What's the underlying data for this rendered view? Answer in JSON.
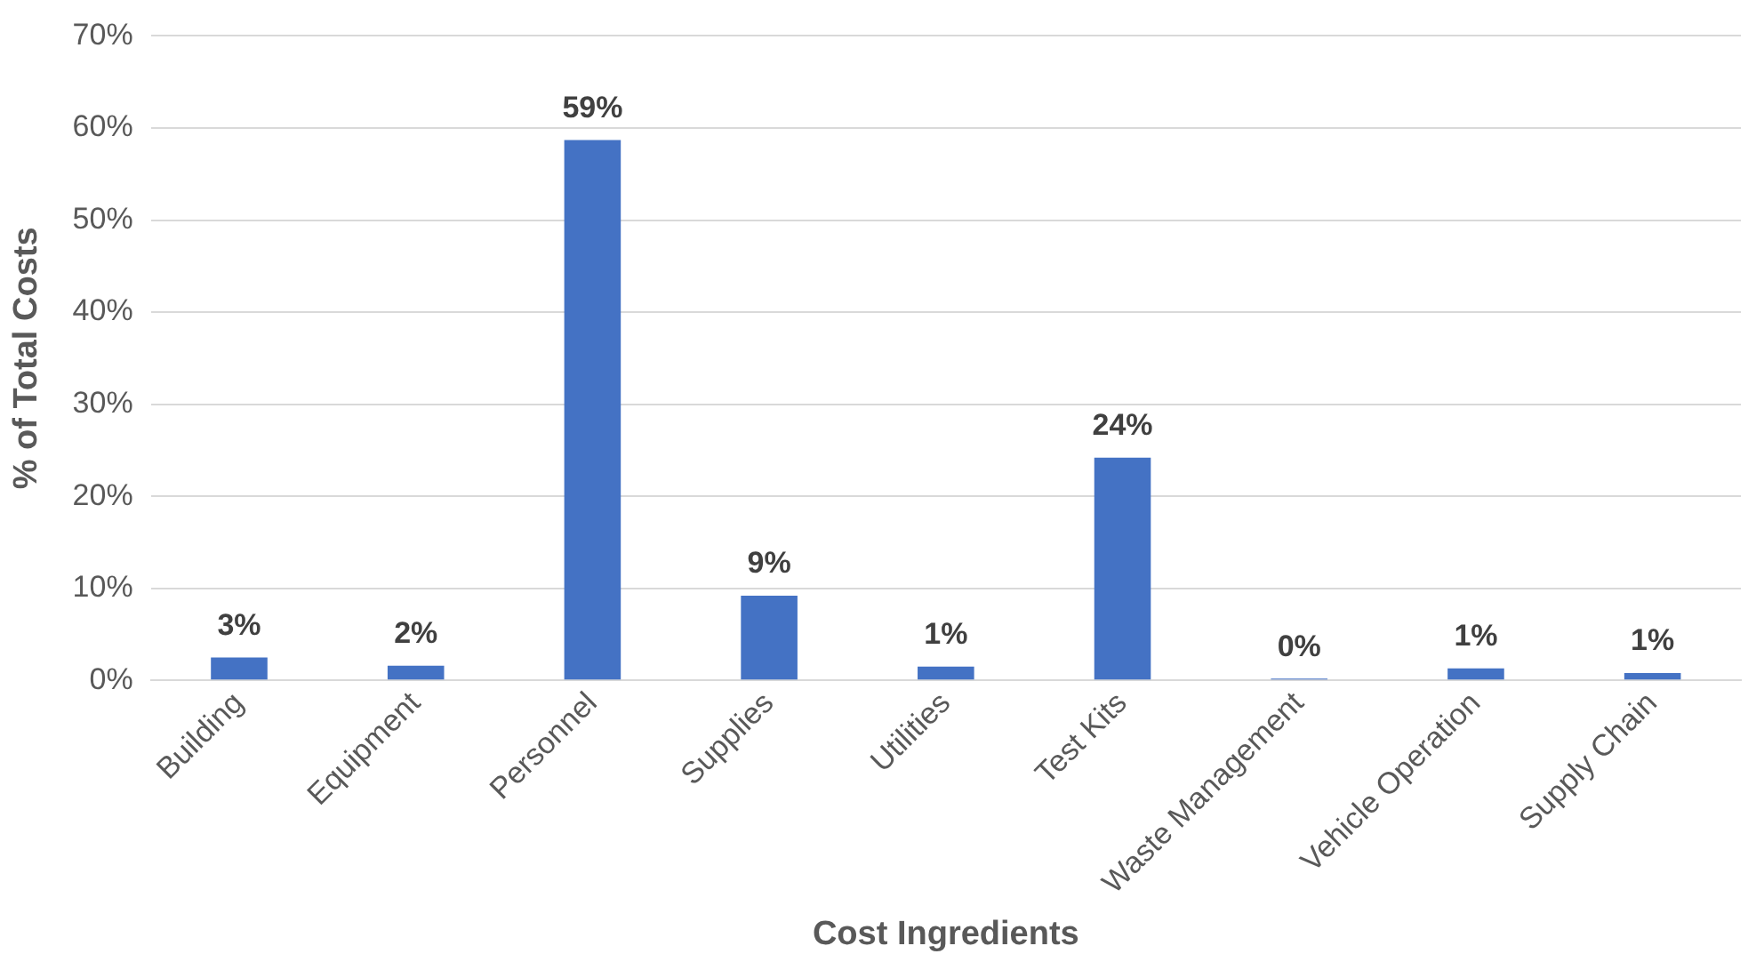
{
  "chart_data": {
    "type": "bar",
    "xlabel": "Cost Ingredients",
    "ylabel": "% of Total Costs",
    "categories": [
      "Building",
      "Equipment",
      "Personnel",
      "Supplies",
      "Utilities",
      "Test Kits",
      "Waste Management",
      "Vehicle Operation",
      "Supply Chain"
    ],
    "values": [
      2.5,
      1.6,
      58.7,
      9.2,
      1.5,
      24.2,
      0.2,
      1.3,
      0.8
    ],
    "value_labels": [
      "3%",
      "2%",
      "59%",
      "9%",
      "1%",
      "24%",
      "0%",
      "1%",
      "1%"
    ],
    "color": "#4472c4",
    "ylim": [
      0,
      70
    ],
    "yticks": [
      {
        "value": 0,
        "label": "0%"
      },
      {
        "value": 10,
        "label": "10%"
      },
      {
        "value": 20,
        "label": "20%"
      },
      {
        "value": 30,
        "label": "30%"
      },
      {
        "value": 40,
        "label": "40%"
      },
      {
        "value": 50,
        "label": "50%"
      },
      {
        "value": 60,
        "label": "60%"
      },
      {
        "value": 70,
        "label": "70%"
      }
    ],
    "grid": "y",
    "legend": false
  }
}
